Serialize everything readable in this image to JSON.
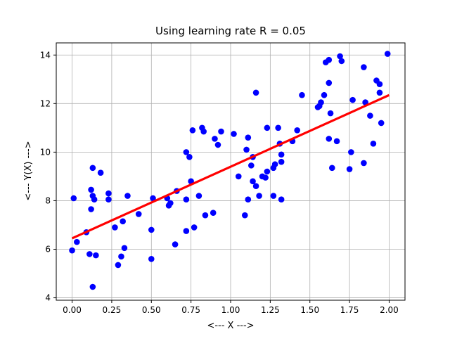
{
  "chart_data": {
    "type": "scatter",
    "title": "Using learning rate R = 0.05",
    "xlabel": "<--- X --->",
    "ylabel": "<--- Y(X) --->",
    "xlim": [
      -0.1,
      2.1
    ],
    "ylim": [
      3.9,
      14.5
    ],
    "xticks": [
      0.0,
      0.25,
      0.5,
      0.75,
      1.0,
      1.25,
      1.5,
      1.75,
      2.0
    ],
    "xtick_labels": [
      "0.00",
      "0.25",
      "0.50",
      "0.75",
      "1.00",
      "1.25",
      "1.50",
      "1.75",
      "2.00"
    ],
    "yticks": [
      4,
      6,
      8,
      10,
      12,
      14
    ],
    "ytick_labels": [
      "4",
      "6",
      "8",
      "10",
      "12",
      "14"
    ],
    "grid": true,
    "series": [
      {
        "kind": "scatter",
        "color": "#0000ff",
        "points": [
          [
            0.0,
            5.95
          ],
          [
            0.01,
            8.1
          ],
          [
            0.03,
            6.3
          ],
          [
            0.09,
            6.7
          ],
          [
            0.11,
            5.8
          ],
          [
            0.12,
            8.45
          ],
          [
            0.12,
            7.65
          ],
          [
            0.13,
            8.2
          ],
          [
            0.13,
            9.35
          ],
          [
            0.13,
            4.45
          ],
          [
            0.14,
            8.05
          ],
          [
            0.15,
            5.75
          ],
          [
            0.18,
            9.15
          ],
          [
            0.23,
            8.3
          ],
          [
            0.23,
            8.05
          ],
          [
            0.27,
            6.9
          ],
          [
            0.29,
            5.35
          ],
          [
            0.31,
            5.7
          ],
          [
            0.32,
            7.15
          ],
          [
            0.33,
            6.05
          ],
          [
            0.35,
            8.2
          ],
          [
            0.42,
            7.45
          ],
          [
            0.5,
            6.8
          ],
          [
            0.5,
            5.6
          ],
          [
            0.51,
            8.1
          ],
          [
            0.6,
            8.1
          ],
          [
            0.61,
            7.8
          ],
          [
            0.62,
            7.9
          ],
          [
            0.65,
            6.2
          ],
          [
            0.66,
            8.4
          ],
          [
            0.72,
            10.0
          ],
          [
            0.72,
            8.05
          ],
          [
            0.72,
            6.75
          ],
          [
            0.74,
            9.8
          ],
          [
            0.75,
            8.8
          ],
          [
            0.76,
            10.9
          ],
          [
            0.77,
            6.9
          ],
          [
            0.8,
            8.2
          ],
          [
            0.82,
            11.0
          ],
          [
            0.83,
            10.85
          ],
          [
            0.84,
            7.4
          ],
          [
            0.89,
            7.5
          ],
          [
            0.9,
            10.55
          ],
          [
            0.92,
            10.3
          ],
          [
            0.94,
            10.85
          ],
          [
            1.02,
            10.75
          ],
          [
            1.05,
            9.0
          ],
          [
            1.09,
            7.4
          ],
          [
            1.1,
            10.1
          ],
          [
            1.11,
            10.6
          ],
          [
            1.11,
            8.05
          ],
          [
            1.13,
            9.45
          ],
          [
            1.14,
            8.8
          ],
          [
            1.14,
            9.8
          ],
          [
            1.16,
            8.6
          ],
          [
            1.16,
            12.45
          ],
          [
            1.18,
            8.2
          ],
          [
            1.2,
            9.0
          ],
          [
            1.22,
            8.95
          ],
          [
            1.23,
            9.2
          ],
          [
            1.23,
            11.0
          ],
          [
            1.27,
            8.2
          ],
          [
            1.27,
            9.35
          ],
          [
            1.28,
            9.5
          ],
          [
            1.3,
            11.0
          ],
          [
            1.31,
            10.35
          ],
          [
            1.32,
            9.9
          ],
          [
            1.32,
            9.6
          ],
          [
            1.32,
            8.05
          ],
          [
            1.39,
            10.45
          ],
          [
            1.42,
            10.9
          ],
          [
            1.45,
            12.35
          ],
          [
            1.55,
            11.85
          ],
          [
            1.56,
            11.9
          ],
          [
            1.57,
            12.05
          ],
          [
            1.59,
            12.35
          ],
          [
            1.6,
            13.7
          ],
          [
            1.62,
            10.55
          ],
          [
            1.62,
            13.8
          ],
          [
            1.62,
            12.85
          ],
          [
            1.63,
            11.6
          ],
          [
            1.64,
            9.35
          ],
          [
            1.67,
            10.45
          ],
          [
            1.69,
            13.95
          ],
          [
            1.7,
            13.75
          ],
          [
            1.75,
            9.3
          ],
          [
            1.76,
            10.0
          ],
          [
            1.77,
            12.15
          ],
          [
            1.84,
            13.5
          ],
          [
            1.84,
            9.55
          ],
          [
            1.85,
            12.05
          ],
          [
            1.88,
            11.5
          ],
          [
            1.9,
            10.35
          ],
          [
            1.92,
            12.95
          ],
          [
            1.94,
            12.8
          ],
          [
            1.94,
            12.45
          ],
          [
            1.95,
            11.2
          ],
          [
            1.99,
            14.05
          ]
        ]
      },
      {
        "kind": "line",
        "color": "#ff0000",
        "points": [
          [
            0.0,
            6.45
          ],
          [
            2.0,
            12.35
          ]
        ]
      }
    ]
  }
}
